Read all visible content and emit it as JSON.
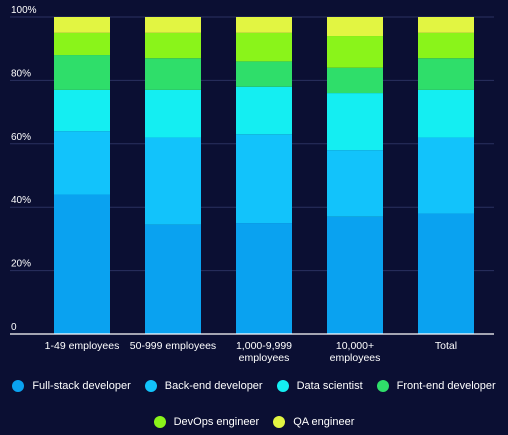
{
  "chart_data": {
    "type": "bar",
    "stacked": true,
    "categories": [
      [
        "1-49 employees"
      ],
      [
        "50-999 employees"
      ],
      [
        "1,000-9,999",
        "employees"
      ],
      [
        "10,000+",
        "employees"
      ],
      [
        "Total"
      ]
    ],
    "series": [
      {
        "name": "Full-stack developer",
        "color": "#0aa2f0",
        "values": [
          44,
          34.5,
          35,
          37,
          38
        ]
      },
      {
        "name": "Back-end developer",
        "color": "#12c3fb",
        "values": [
          20,
          27.5,
          28,
          21,
          24
        ]
      },
      {
        "name": "Data scientist",
        "color": "#14eef2",
        "values": [
          13,
          15,
          15,
          18,
          15
        ]
      },
      {
        "name": "Front-end developer",
        "color": "#2fde6a",
        "values": [
          11,
          10,
          8,
          8,
          10
        ]
      },
      {
        "name": "DevOps engineer",
        "color": "#8af41a",
        "values": [
          7,
          8,
          9,
          10,
          8
        ]
      },
      {
        "name": "QA engineer",
        "color": "#e2f542",
        "values": [
          5,
          5,
          5,
          6,
          5
        ]
      }
    ],
    "ylim": [
      0,
      100
    ],
    "yticks": [
      "0",
      "20%",
      "40%",
      "60%",
      "80%",
      "100%"
    ],
    "grid": true,
    "legend": "bottom"
  }
}
